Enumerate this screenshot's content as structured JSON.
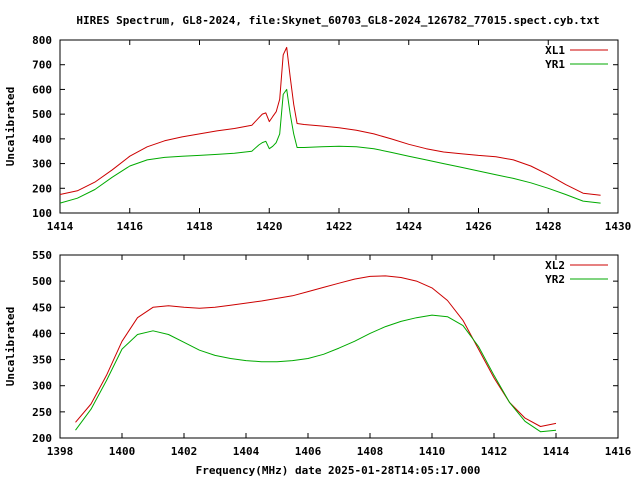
{
  "chart_data": {
    "title": "HIRES Spectrum, GL8-2024, file:Skynet_60703_GL8-2024_126782_77015.spect.cyb.txt",
    "footer": "Frequency(MHz) date 2025-01-28T14:05:17.000",
    "colors": {
      "series_a": "#cc0000",
      "series_b": "#00aa00",
      "frame": "#000000"
    },
    "panels": [
      {
        "type": "line",
        "xlabel": "",
        "ylabel": "Uncalibrated",
        "xlim": [
          1414,
          1430
        ],
        "ylim": [
          100,
          800
        ],
        "xticks": [
          1414,
          1416,
          1418,
          1420,
          1422,
          1424,
          1426,
          1428,
          1430
        ],
        "yticks": [
          100,
          200,
          300,
          400,
          500,
          600,
          700,
          800
        ],
        "legend": "top-right",
        "grid": false,
        "series": [
          {
            "name": "XL1",
            "color": "#cc0000",
            "x": [
              1414.0,
              1414.5,
              1415.0,
              1415.5,
              1416.0,
              1416.5,
              1417.0,
              1417.5,
              1418.0,
              1418.5,
              1419.0,
              1419.5,
              1419.7,
              1419.8,
              1419.9,
              1420.0,
              1420.1,
              1420.2,
              1420.3,
              1420.4,
              1420.5,
              1420.6,
              1420.7,
              1420.8,
              1421.0,
              1421.5,
              1422.0,
              1422.5,
              1423.0,
              1423.5,
              1424.0,
              1424.5,
              1425.0,
              1425.5,
              1426.0,
              1426.5,
              1427.0,
              1427.5,
              1428.0,
              1428.5,
              1429.0,
              1429.5
            ],
            "y": [
              175,
              190,
              225,
              275,
              330,
              368,
              392,
              408,
              420,
              432,
              442,
              455,
              485,
              500,
              505,
              470,
              490,
              510,
              560,
              740,
              770,
              650,
              540,
              462,
              458,
              452,
              445,
              435,
              420,
              400,
              378,
              360,
              347,
              340,
              333,
              328,
              315,
              290,
              255,
              215,
              180,
              172
            ]
          },
          {
            "name": "YR1",
            "color": "#00aa00",
            "x": [
              1414.0,
              1414.5,
              1415.0,
              1415.5,
              1416.0,
              1416.5,
              1417.0,
              1417.5,
              1418.0,
              1418.5,
              1419.0,
              1419.5,
              1419.7,
              1419.8,
              1419.9,
              1420.0,
              1420.1,
              1420.2,
              1420.3,
              1420.4,
              1420.5,
              1420.6,
              1420.7,
              1420.8,
              1421.0,
              1421.5,
              1422.0,
              1422.5,
              1423.0,
              1423.5,
              1424.0,
              1424.5,
              1425.0,
              1425.5,
              1426.0,
              1426.5,
              1427.0,
              1427.5,
              1428.0,
              1428.5,
              1429.0,
              1429.5
            ],
            "y": [
              140,
              160,
              195,
              245,
              290,
              315,
              325,
              330,
              333,
              337,
              342,
              350,
              375,
              385,
              390,
              360,
              370,
              385,
              420,
              580,
              600,
              500,
              420,
              365,
              365,
              368,
              370,
              368,
              360,
              345,
              330,
              315,
              300,
              285,
              270,
              255,
              240,
              222,
              200,
              175,
              148,
              140
            ]
          }
        ]
      },
      {
        "type": "line",
        "xlabel": "Frequency(MHz) date 2025-01-28T14:05:17.000",
        "ylabel": "Uncalibrated",
        "xlim": [
          1398,
          1416
        ],
        "ylim": [
          200,
          550
        ],
        "xticks": [
          1398,
          1400,
          1402,
          1404,
          1406,
          1408,
          1410,
          1412,
          1414,
          1416
        ],
        "yticks": [
          200,
          250,
          300,
          350,
          400,
          450,
          500,
          550
        ],
        "legend": "top-right",
        "grid": false,
        "series": [
          {
            "name": "XL2",
            "color": "#cc0000",
            "x": [
              1398.5,
              1399.0,
              1399.5,
              1400.0,
              1400.5,
              1401.0,
              1401.5,
              1402.0,
              1402.5,
              1403.0,
              1403.5,
              1404.0,
              1404.5,
              1405.0,
              1405.5,
              1406.0,
              1406.5,
              1407.0,
              1407.5,
              1408.0,
              1408.5,
              1409.0,
              1409.5,
              1410.0,
              1410.5,
              1411.0,
              1411.5,
              1412.0,
              1412.5,
              1413.0,
              1413.5,
              1414.0
            ],
            "y": [
              230,
              265,
              320,
              385,
              430,
              450,
              453,
              450,
              448,
              450,
              454,
              458,
              462,
              467,
              472,
              480,
              488,
              496,
              504,
              509,
              510,
              507,
              500,
              487,
              463,
              425,
              370,
              315,
              268,
              238,
              222,
              228
            ]
          },
          {
            "name": "YR2",
            "color": "#00aa00",
            "x": [
              1398.5,
              1399.0,
              1399.5,
              1400.0,
              1400.5,
              1401.0,
              1401.5,
              1402.0,
              1402.5,
              1403.0,
              1403.5,
              1404.0,
              1404.5,
              1405.0,
              1405.5,
              1406.0,
              1406.5,
              1407.0,
              1407.5,
              1408.0,
              1408.5,
              1409.0,
              1409.5,
              1410.0,
              1410.5,
              1411.0,
              1411.5,
              1412.0,
              1412.5,
              1413.0,
              1413.5,
              1414.0
            ],
            "y": [
              215,
              255,
              310,
              370,
              398,
              405,
              398,
              383,
              368,
              358,
              352,
              348,
              346,
              346,
              348,
              352,
              360,
              372,
              385,
              400,
              413,
              423,
              430,
              435,
              432,
              415,
              375,
              320,
              268,
              232,
              212,
              215
            ]
          }
        ]
      }
    ]
  }
}
